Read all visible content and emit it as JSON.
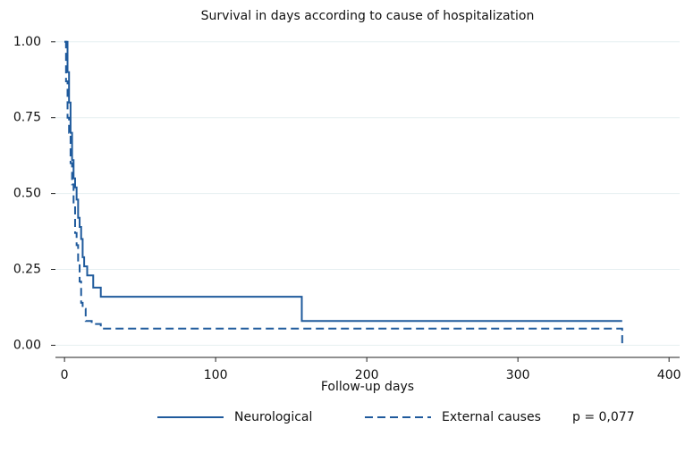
{
  "chart_data": {
    "type": "step",
    "title": "Survival in days according to cause of hospitalization",
    "x_label": "Follow-up days",
    "annotation": "p = 0,077",
    "xlim": [
      -6,
      407
    ],
    "xticks": [
      0,
      100,
      200,
      300,
      400
    ],
    "ylim": [
      -0.04,
      1.02
    ],
    "yticks": [
      {
        "value": 0,
        "label": "0.00"
      },
      {
        "value": 0.25,
        "label": "0.25"
      },
      {
        "value": 0.5,
        "label": "0.50"
      },
      {
        "value": 0.75,
        "label": "0.75"
      },
      {
        "value": 1,
        "label": "1.00"
      }
    ],
    "grid": true,
    "series": [
      {
        "name": "Neurological",
        "color": "#1f5a9c",
        "dash": "solid",
        "x": [
          0,
          2,
          3,
          4,
          5,
          6,
          7,
          8,
          9,
          10,
          11,
          12,
          13,
          15,
          19,
          24,
          157,
          369
        ],
        "values": [
          1.0,
          0.9,
          0.8,
          0.7,
          0.61,
          0.55,
          0.52,
          0.48,
          0.42,
          0.39,
          0.35,
          0.29,
          0.26,
          0.23,
          0.19,
          0.16,
          0.08,
          0.08
        ]
      },
      {
        "name": "External causes",
        "color": "#1f5a9c",
        "dash": "dashed",
        "x": [
          0,
          1,
          2,
          3,
          4,
          5,
          6,
          7,
          8,
          9,
          10,
          11,
          12,
          14,
          18,
          24,
          369
        ],
        "values": [
          1.0,
          0.87,
          0.75,
          0.7,
          0.6,
          0.53,
          0.46,
          0.37,
          0.33,
          0.27,
          0.21,
          0.14,
          0.12,
          0.08,
          0.07,
          0.055,
          0.0
        ]
      }
    ]
  }
}
